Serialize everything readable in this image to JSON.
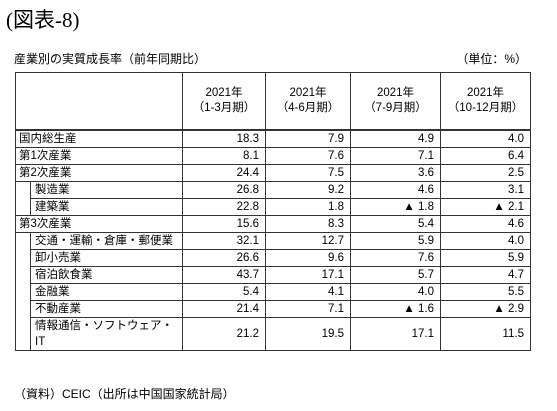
{
  "header": {
    "title": "(図表-8)",
    "caption": "産業別の実質成長率（前年同期比）",
    "unit": "（単位：%）"
  },
  "table": {
    "columns": [
      {
        "year": "2021年",
        "period": "（1-3月期）"
      },
      {
        "year": "2021年",
        "period": "（4-6月期）"
      },
      {
        "year": "2021年",
        "period": "（7-9月期）"
      },
      {
        "year": "2021年",
        "period": "（10-12月期）"
      }
    ],
    "rows": [
      {
        "label": "国内総生産",
        "values": [
          "18.3",
          "7.9",
          "4.9",
          "4.0"
        ]
      },
      {
        "label": "第1次産業",
        "values": [
          "8.1",
          "7.6",
          "7.1",
          "6.4"
        ]
      },
      {
        "label": "第2次産業",
        "values": [
          "24.4",
          "7.5",
          "3.6",
          "2.5"
        ],
        "children": [
          {
            "label": "製造業",
            "values": [
              "26.8",
              "9.2",
              "4.6",
              "3.1"
            ]
          },
          {
            "label": "建築業",
            "values": [
              "22.8",
              "1.8",
              "▲ 1.8",
              "▲ 2.1"
            ]
          }
        ]
      },
      {
        "label": "第3次産業",
        "values": [
          "15.6",
          "8.3",
          "5.4",
          "4.6"
        ],
        "children": [
          {
            "label": "交通・運輸・倉庫・郵便業",
            "values": [
              "32.1",
              "12.7",
              "5.9",
              "4.0"
            ]
          },
          {
            "label": "卸小売業",
            "values": [
              "26.6",
              "9.6",
              "7.6",
              "5.9"
            ]
          },
          {
            "label": "宿泊飲食業",
            "values": [
              "43.7",
              "17.1",
              "5.7",
              "4.7"
            ]
          },
          {
            "label": "金融業",
            "values": [
              "5.4",
              "4.1",
              "4.0",
              "5.5"
            ]
          },
          {
            "label": "不動産業",
            "values": [
              "21.4",
              "7.1",
              "▲ 1.6",
              "▲ 2.9"
            ]
          },
          {
            "label": "情報通信・ソフトウェア・IT",
            "values": [
              "21.2",
              "19.5",
              "17.1",
              "11.5"
            ]
          }
        ]
      }
    ]
  },
  "footer": {
    "source": "（資料）CEIC（出所は中国国家統計局）"
  }
}
